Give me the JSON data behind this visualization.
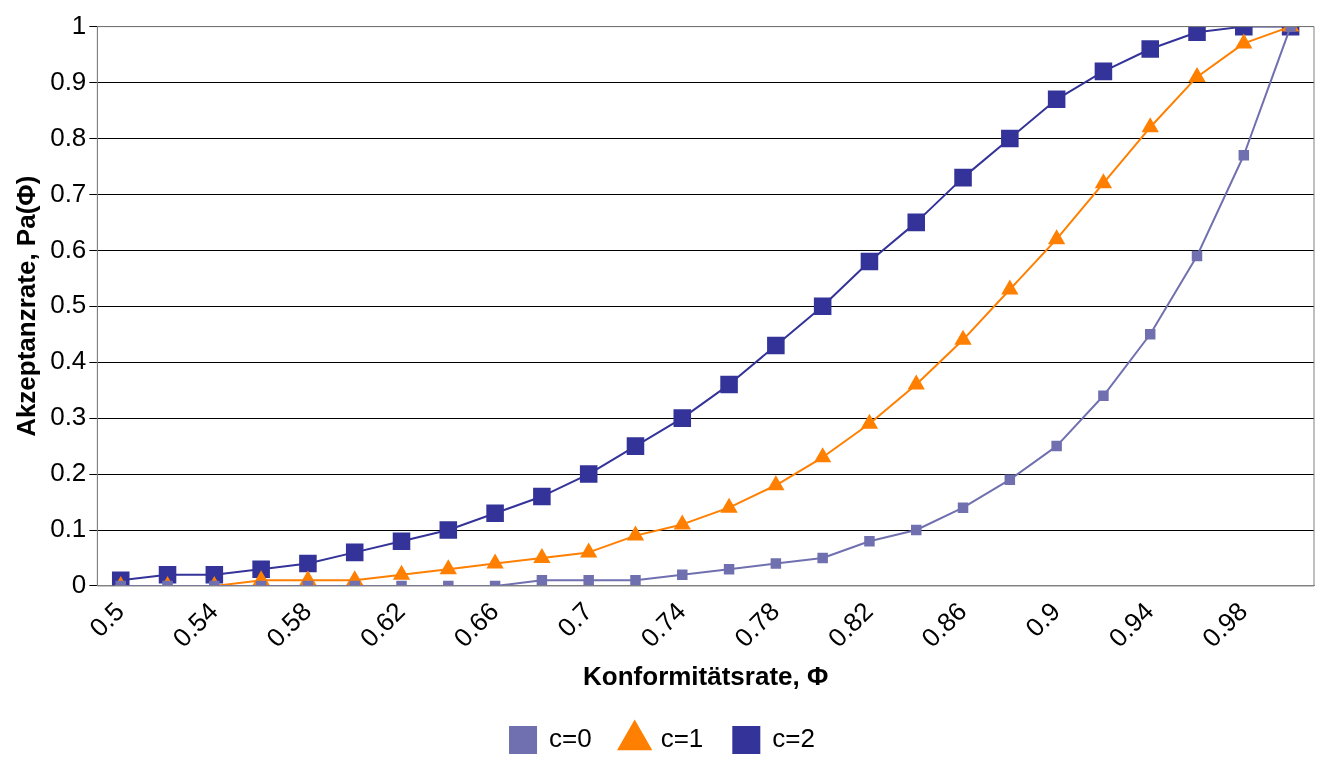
{
  "chart_data": {
    "type": "line",
    "xlabel": "Konformitätsrate, Φ",
    "ylabel": "Akzeptanzrate, Pa(Φ)",
    "categories": [
      "0.5",
      null,
      "0.54",
      null,
      "0.58",
      null,
      "0.62",
      null,
      "0.66",
      null,
      "0.7",
      null,
      "0.74",
      null,
      "0.78",
      null,
      "0.82",
      null,
      "0.86",
      null,
      "0.9",
      null,
      "0.94",
      null,
      "0.98",
      null
    ],
    "series": [
      {
        "name": "c=0",
        "color": "#7070b0",
        "marker": "square",
        "values": [
          0,
          0,
          0,
          0,
          0,
          0,
          0,
          0,
          0,
          0.01,
          0.01,
          0.01,
          0.02,
          0.03,
          0.04,
          0.05,
          0.08,
          0.1,
          0.14,
          0.19,
          0.25,
          0.34,
          0.45,
          0.59,
          0.77,
          1
        ]
      },
      {
        "name": "c=1",
        "color": "#ff7f00",
        "marker": "triangle",
        "values": [
          0,
          0,
          0,
          0.01,
          0.01,
          0.01,
          0.02,
          0.03,
          0.04,
          0.05,
          0.06,
          0.09,
          0.11,
          0.14,
          0.18,
          0.23,
          0.29,
          0.36,
          0.44,
          0.53,
          0.62,
          0.72,
          0.82,
          0.91,
          0.97,
          1
        ]
      },
      {
        "name": "c=2",
        "color": "#333399",
        "marker": "square",
        "values": [
          0.01,
          0.02,
          0.02,
          0.03,
          0.04,
          0.06,
          0.08,
          0.1,
          0.13,
          0.16,
          0.2,
          0.25,
          0.3,
          0.36,
          0.43,
          0.5,
          0.58,
          0.65,
          0.73,
          0.8,
          0.87,
          0.92,
          0.96,
          0.99,
          1,
          1
        ]
      }
    ],
    "ylim": [
      0,
      1
    ],
    "yticks": [
      0,
      0.1,
      0.2,
      0.3,
      0.4,
      0.5,
      0.6,
      0.7,
      0.8,
      0.9,
      1
    ],
    "grid": "y",
    "legend": "bottom",
    "line_style": "solid"
  }
}
